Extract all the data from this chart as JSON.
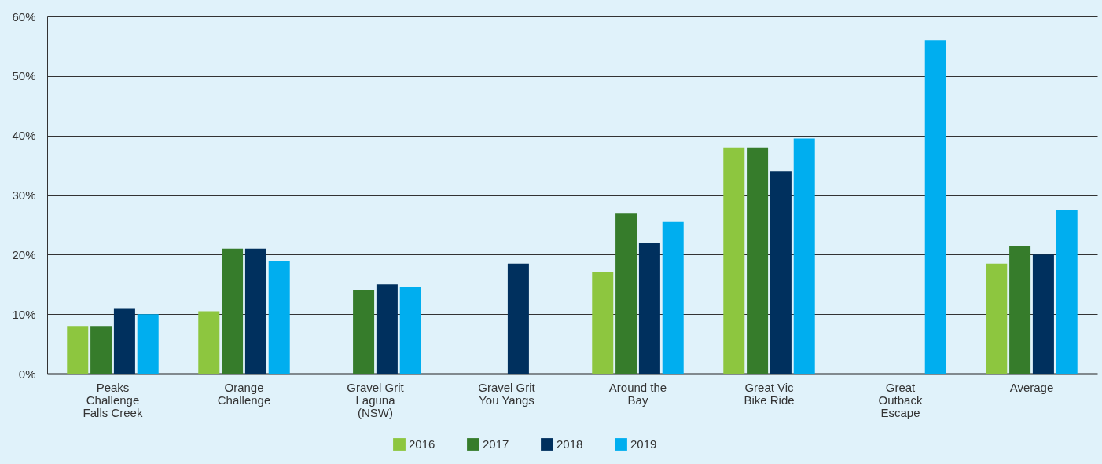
{
  "chart_data": {
    "type": "bar",
    "categories": [
      "Peaks Challenge Falls Creek",
      "Orange Challenge",
      "Gravel Grit Laguna (NSW)",
      "Gravel Grit You Yangs",
      "Around the Bay",
      "Great Vic Bike Ride",
      "Great Outback Escape",
      "Average"
    ],
    "series": [
      {
        "name": "2016",
        "color": "#8dc63f",
        "values": [
          8,
          10.5,
          null,
          null,
          17,
          38,
          null,
          18.5
        ]
      },
      {
        "name": "2017",
        "color": "#367c2b",
        "values": [
          8,
          21,
          14,
          null,
          27,
          38,
          null,
          21.5
        ]
      },
      {
        "name": "2018",
        "color": "#00305e",
        "values": [
          11,
          21,
          15,
          18.5,
          22,
          34,
          null,
          20
        ]
      },
      {
        "name": "2019",
        "color": "#00aeef",
        "values": [
          10,
          19,
          14.5,
          null,
          25.5,
          39.5,
          56,
          27.5
        ]
      }
    ],
    "ylim": [
      0,
      60
    ],
    "yticks": [
      {
        "value": 0,
        "label": "0%"
      },
      {
        "value": 10,
        "label": "10%"
      },
      {
        "value": 20,
        "label": "20%"
      },
      {
        "value": 30,
        "label": "30%"
      },
      {
        "value": 40,
        "label": "40%"
      },
      {
        "value": 50,
        "label": "50%"
      },
      {
        "value": 60,
        "label": "60%"
      }
    ],
    "grid": "y",
    "legend": "bottom"
  }
}
